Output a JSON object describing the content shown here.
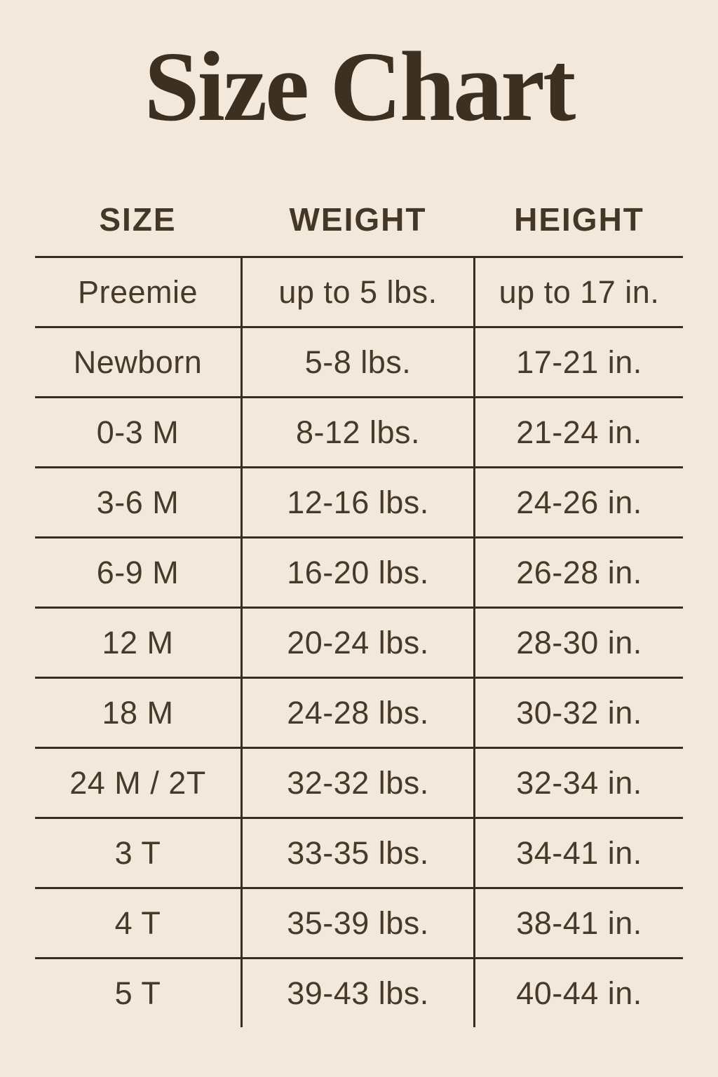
{
  "page": {
    "title": "Size Chart",
    "colors": {
      "background": "#f2e9dc",
      "title_text": "#3d3020",
      "cell_text": "#483a29",
      "line": "#3a2d1e"
    }
  },
  "chart_data": {
    "type": "table",
    "title": "Size Chart",
    "columns": [
      "SIZE",
      "WEIGHT",
      "HEIGHT"
    ],
    "rows": [
      [
        "Preemie",
        "up to 5 lbs.",
        "up to 17 in."
      ],
      [
        "Newborn",
        "5-8 lbs.",
        "17-21 in."
      ],
      [
        "0-3 M",
        "8-12 lbs.",
        "21-24 in."
      ],
      [
        "3-6 M",
        "12-16 lbs.",
        "24-26 in."
      ],
      [
        "6-9 M",
        "16-20 lbs.",
        "26-28 in."
      ],
      [
        "12 M",
        "20-24 lbs.",
        "28-30 in."
      ],
      [
        "18 M",
        "24-28 lbs.",
        "30-32 in."
      ],
      [
        "24 M / 2T",
        "32-32 lbs.",
        "32-34 in."
      ],
      [
        "3 T",
        "33-35 lbs.",
        "34-41 in."
      ],
      [
        "4 T",
        "35-39 lbs.",
        "38-41 in."
      ],
      [
        "5 T",
        "39-43 lbs.",
        "40-44 in."
      ]
    ],
    "layout": {
      "grid": "horizontal rules between rows, vertical rules flanking middle column, no outer border",
      "legend": "none",
      "header_style": "bold uppercase sans-serif"
    }
  }
}
